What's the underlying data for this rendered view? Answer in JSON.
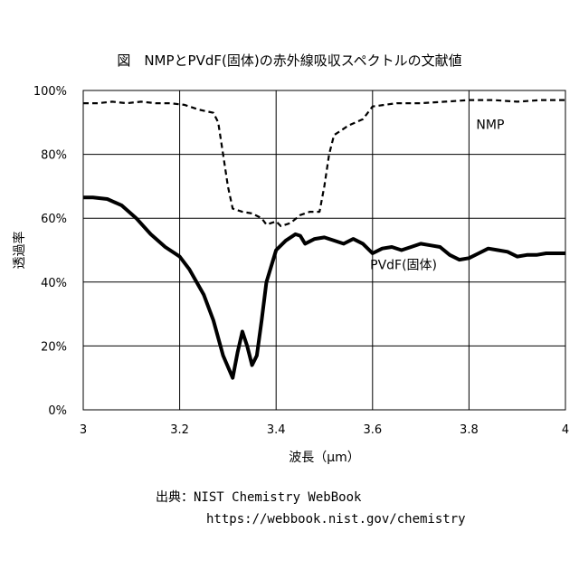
{
  "chart_data": {
    "type": "line",
    "title": "図　NMPとPVdF(固体)の赤外線吸収スペクトルの文献値",
    "xlabel": "波長（μm）",
    "ylabel": "透過率",
    "xlim": [
      3,
      4
    ],
    "ylim": [
      0,
      100
    ],
    "x_ticks": [
      "3",
      "3.2",
      "3.4",
      "3.6",
      "3.8",
      "4"
    ],
    "y_ticks": [
      "0%",
      "20%",
      "40%",
      "60%",
      "80%",
      "100%"
    ],
    "grid": true,
    "series": [
      {
        "name": "NMP",
        "style": "dashed",
        "color": "#000000",
        "x": [
          3.0,
          3.03,
          3.06,
          3.09,
          3.12,
          3.15,
          3.18,
          3.21,
          3.24,
          3.27,
          3.28,
          3.29,
          3.3,
          3.31,
          3.33,
          3.35,
          3.37,
          3.38,
          3.4,
          3.41,
          3.43,
          3.45,
          3.47,
          3.49,
          3.5,
          3.51,
          3.52,
          3.55,
          3.58,
          3.6,
          3.65,
          3.7,
          3.75,
          3.8,
          3.85,
          3.9,
          3.95,
          4.0
        ],
        "y": [
          96,
          96,
          96.5,
          96,
          96.5,
          96,
          96,
          95.5,
          94,
          93,
          90,
          80,
          70,
          63,
          62,
          61.5,
          60,
          58,
          59,
          57.5,
          58.5,
          61,
          62,
          62,
          70,
          80,
          86,
          89,
          91,
          95,
          96,
          96,
          96.5,
          97,
          97,
          96.5,
          97,
          97
        ]
      },
      {
        "name": "PVdF(固体)",
        "style": "solid",
        "color": "#000000",
        "x": [
          3.0,
          3.02,
          3.05,
          3.08,
          3.11,
          3.14,
          3.17,
          3.2,
          3.22,
          3.25,
          3.27,
          3.29,
          3.31,
          3.32,
          3.33,
          3.34,
          3.35,
          3.36,
          3.37,
          3.38,
          3.4,
          3.42,
          3.44,
          3.45,
          3.46,
          3.48,
          3.5,
          3.52,
          3.54,
          3.56,
          3.58,
          3.6,
          3.62,
          3.64,
          3.66,
          3.68,
          3.7,
          3.72,
          3.74,
          3.76,
          3.78,
          3.8,
          3.82,
          3.84,
          3.86,
          3.88,
          3.9,
          3.92,
          3.94,
          3.96,
          4.0
        ],
        "y": [
          66.5,
          66.5,
          66,
          64,
          60,
          55,
          51,
          48,
          44,
          36,
          28,
          17,
          10,
          18,
          24.5,
          20,
          14,
          17,
          28,
          40,
          50,
          53,
          55,
          54.5,
          52,
          53.5,
          54,
          53,
          52,
          53.5,
          52,
          49,
          50.5,
          51,
          50,
          51,
          52,
          51.5,
          51,
          48.5,
          47,
          47.5,
          49,
          50.5,
          50,
          49.5,
          48,
          48.5,
          48.5,
          49,
          49
        ]
      }
    ]
  },
  "source": {
    "line1": "出典：NIST Chemistry WebBook",
    "line2": "https://webbook.nist.gov/chemistry"
  }
}
